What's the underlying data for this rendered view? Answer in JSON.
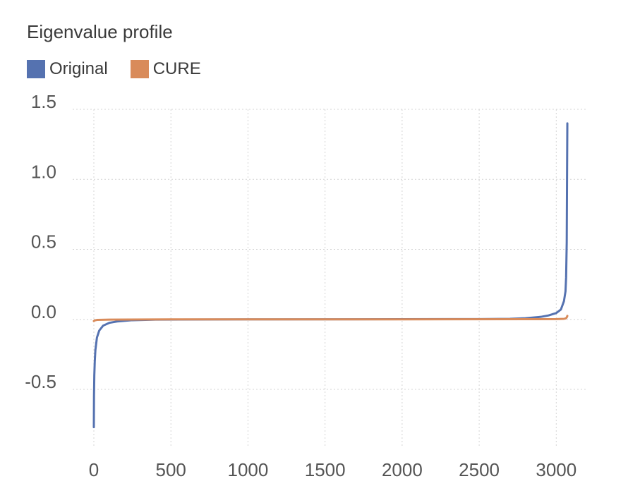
{
  "chart_data": {
    "type": "line",
    "title": "Eigenvalue profile",
    "xlabel": "",
    "ylabel": "",
    "xlim": [
      0,
      3200
    ],
    "ylim": [
      -0.9,
      1.5
    ],
    "x_ticks": [
      0,
      500,
      1000,
      1500,
      2000,
      2500,
      3000
    ],
    "y_ticks": [
      1.5,
      1.0,
      0.5,
      0.0,
      -0.5
    ],
    "x_tick_labels": [
      "0",
      "500",
      "1000",
      "1500",
      "2000",
      "2500",
      "3000"
    ],
    "y_tick_labels": [
      "1.5",
      "1.0",
      "0.5",
      "0.0",
      "-0.5"
    ],
    "grid": true,
    "legend_position": "top-left",
    "series": [
      {
        "name": "Original",
        "color": "#5572b0",
        "x": [
          0,
          1,
          3,
          6,
          10,
          20,
          35,
          60,
          100,
          150,
          250,
          400,
          1000,
          2000,
          2500,
          2700,
          2800,
          2900,
          2950,
          3000,
          3030,
          3050,
          3060,
          3064,
          3068,
          3070,
          3072
        ],
        "y": [
          -0.77,
          -0.55,
          -0.4,
          -0.3,
          -0.22,
          -0.13,
          -0.08,
          -0.045,
          -0.025,
          -0.015,
          -0.006,
          -0.002,
          0.0,
          0.001,
          0.002,
          0.004,
          0.008,
          0.018,
          0.028,
          0.045,
          0.07,
          0.13,
          0.2,
          0.3,
          0.55,
          1.0,
          1.4
        ]
      },
      {
        "name": "CURE",
        "color": "#d98b5a",
        "x": [
          0,
          5,
          20,
          100,
          500,
          1000,
          2000,
          2800,
          3000,
          3050,
          3060,
          3065,
          3070,
          3072
        ],
        "y": [
          -0.012,
          -0.008,
          -0.004,
          -0.002,
          0.0,
          0.0,
          0.0,
          0.001,
          0.002,
          0.004,
          0.006,
          0.01,
          0.018,
          0.025
        ]
      }
    ]
  }
}
